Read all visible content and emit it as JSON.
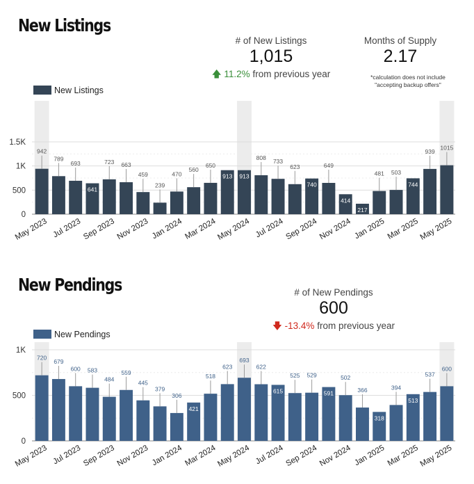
{
  "listings": {
    "title": "New Listings",
    "kpis": [
      {
        "label": "# of New Listings",
        "value": "1,015",
        "change_pct": "11.2%",
        "change_suffix": "from previous year",
        "direction": "up"
      },
      {
        "label": "Months of Supply",
        "value": "2.17"
      }
    ],
    "footnote": [
      "*calculation does not include",
      "\"accepting backup offers\""
    ]
  },
  "pendings": {
    "title": "New Pendings",
    "kpis": [
      {
        "label": "# of New Pendings",
        "value": "600",
        "change_pct": "-13.4%",
        "change_suffix": "from previous year",
        "direction": "down"
      }
    ]
  },
  "colors": {
    "listings_bar": "#344556",
    "pendings_bar": "#3f6189",
    "highlight": "#ececec",
    "grid": "#dddddd",
    "whisker": "#9a9a9a",
    "up": "#3a8f3a",
    "down": "#d02a1e"
  },
  "chart_data": [
    {
      "type": "bar",
      "series": [
        {
          "name": "New Listings",
          "values": [
            942,
            789,
            693,
            641,
            723,
            663,
            459,
            239,
            470,
            560,
            650,
            913,
            913,
            808,
            733,
            623,
            740,
            649,
            414,
            217,
            481,
            503,
            744,
            939,
            1015
          ]
        }
      ],
      "categories": [
        "May 2023",
        "Jun 2023",
        "Jul 2023",
        "Aug 2023",
        "Sep 2023",
        "Oct 2023",
        "Nov 2023",
        "Dec 2023",
        "Jan 2024",
        "Feb 2024",
        "Mar 2024",
        "Apr 2024",
        "May 2024",
        "Jun 2024",
        "Jul 2024",
        "Aug 2024",
        "Sep 2024",
        "Oct 2024",
        "Nov 2024",
        "Dec 2024",
        "Jan 2025",
        "Feb 2025",
        "Mar 2025",
        "Apr 2025",
        "May 2025"
      ],
      "xtick_labels": [
        "May 2023",
        "Jul 2023",
        "Sep 2023",
        "Nov 2023",
        "Jan 2024",
        "Mar 2024",
        "May 2024",
        "Jul 2024",
        "Sep 2024",
        "Nov 2024",
        "Jan 2025",
        "Mar 2025",
        "May 2025"
      ],
      "yticks": [
        0,
        500,
        1000,
        1500
      ],
      "ytick_labels": [
        "0",
        "500",
        "1K",
        "1.5K"
      ],
      "ylim": [
        0,
        1500
      ],
      "highlighted": [
        0,
        12,
        24
      ],
      "legend": "top-left",
      "grid": true
    },
    {
      "type": "bar",
      "series": [
        {
          "name": "New Pendings",
          "values": [
            720,
            679,
            600,
            583,
            484,
            559,
            445,
            379,
            306,
            421,
            518,
            623,
            693,
            622,
            615,
            525,
            529,
            591,
            502,
            366,
            318,
            394,
            513,
            537,
            600
          ]
        }
      ],
      "categories": [
        "May 2023",
        "Jun 2023",
        "Jul 2023",
        "Aug 2023",
        "Sep 2023",
        "Oct 2023",
        "Nov 2023",
        "Dec 2023",
        "Jan 2024",
        "Feb 2024",
        "Mar 2024",
        "Apr 2024",
        "May 2024",
        "Jun 2024",
        "Jul 2024",
        "Aug 2024",
        "Sep 2024",
        "Oct 2024",
        "Nov 2024",
        "Dec 2024",
        "Jan 2025",
        "Feb 2025",
        "Mar 2025",
        "Apr 2025",
        "May 2025"
      ],
      "xtick_labels": [
        "May 2023",
        "Jul 2023",
        "Sep 2023",
        "Nov 2023",
        "Jan 2024",
        "Mar 2024",
        "May 2024",
        "Jul 2024",
        "Sep 2024",
        "Nov 2024",
        "Jan 2025",
        "Mar 2025",
        "May 2025"
      ],
      "yticks": [
        0,
        500,
        1000
      ],
      "ytick_labels": [
        "0",
        "500",
        "1K"
      ],
      "ylim": [
        0,
        1000
      ],
      "highlighted": [
        0,
        12,
        24
      ],
      "legend": "top-left",
      "grid": true
    }
  ]
}
